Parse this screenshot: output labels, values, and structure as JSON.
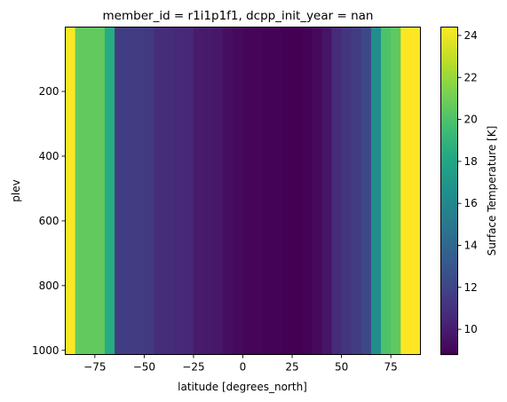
{
  "chart_data": {
    "type": "heatmap",
    "title": "member_id = r1i1p1f1, dcpp_init_year = nan",
    "xlabel": "latitude [degrees_north]",
    "ylabel": "plev",
    "colorbar_label": "Surface Temperature [K]",
    "colormap": "viridis",
    "xlim": [
      -90,
      90
    ],
    "ylim": [
      1013,
      1
    ],
    "y_inverted": true,
    "x_ticks": [
      -75,
      -50,
      -25,
      0,
      25,
      50,
      75
    ],
    "x_tick_labels": [
      "−75",
      "−50",
      "−25",
      "0",
      "25",
      "50",
      "75"
    ],
    "y_ticks": [
      200,
      400,
      600,
      800,
      1000
    ],
    "y_tick_labels": [
      "200",
      "400",
      "600",
      "800",
      "1000"
    ],
    "colorbar_range": [
      8.8,
      24.4
    ],
    "colorbar_ticks": [
      10,
      12,
      14,
      16,
      18,
      20,
      22,
      24
    ],
    "colorbar_tick_labels": [
      "10",
      "12",
      "14",
      "16",
      "18",
      "20",
      "22",
      "24"
    ],
    "latitude_edges": [
      -90,
      -85,
      -75,
      -70,
      -65,
      -60,
      -50,
      -45,
      -40,
      -35,
      -30,
      -25,
      -20,
      -15,
      -10,
      -5,
      0,
      5,
      10,
      15,
      20,
      25,
      30,
      35,
      40,
      45,
      50,
      55,
      60,
      65,
      70,
      75,
      80,
      85,
      90
    ],
    "values_by_latitude_band": [
      24.4,
      20.6,
      20.6,
      18.4,
      11.6,
      11.6,
      11.4,
      10.8,
      10.8,
      10.6,
      10.5,
      10.0,
      9.9,
      9.8,
      9.4,
      9.2,
      9.0,
      9.0,
      8.9,
      8.9,
      8.8,
      8.8,
      8.9,
      9.2,
      9.7,
      10.7,
      11.2,
      11.6,
      12.2,
      16.5,
      20.0,
      20.5,
      24.4,
      24.4
    ]
  }
}
